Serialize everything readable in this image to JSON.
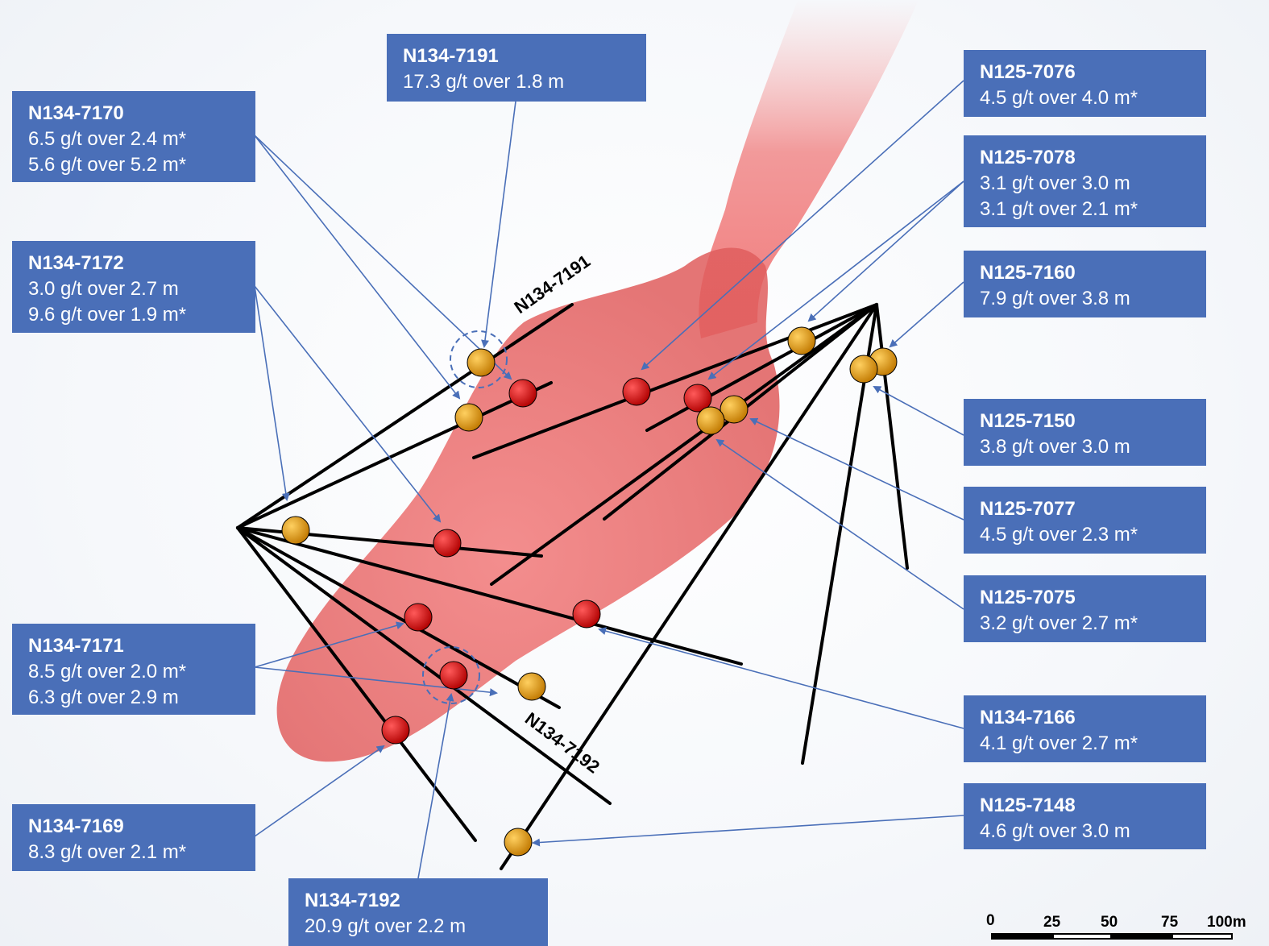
{
  "callouts": {
    "n134_7191": {
      "hole": "N134-7191",
      "lines": [
        "17.3 g/t over 1.8 m"
      ]
    },
    "n134_7170": {
      "hole": "N134-7170",
      "lines": [
        "6.5 g/t over 2.4 m*",
        "5.6 g/t over 5.2 m*"
      ]
    },
    "n134_7172": {
      "hole": "N134-7172",
      "lines": [
        "3.0 g/t over 2.7 m",
        "9.6 g/t over 1.9 m*"
      ]
    },
    "n134_7171": {
      "hole": "N134-7171",
      "lines": [
        "8.5 g/t over 2.0 m*",
        "6.3 g/t over 2.9 m"
      ]
    },
    "n134_7169": {
      "hole": "N134-7169",
      "lines": [
        "8.3 g/t over 2.1 m*"
      ]
    },
    "n134_7192": {
      "hole": "N134-7192",
      "lines": [
        "20.9 g/t over 2.2 m"
      ]
    },
    "n125_7076": {
      "hole": "N125-7076",
      "lines": [
        "4.5 g/t over 4.0 m*"
      ]
    },
    "n125_7078": {
      "hole": "N125-7078",
      "lines": [
        "3.1 g/t over 3.0 m",
        "3.1 g/t over 2.1 m*"
      ]
    },
    "n125_7160": {
      "hole": "N125-7160",
      "lines": [
        "7.9 g/t over 3.8 m"
      ]
    },
    "n125_7150": {
      "hole": "N125-7150",
      "lines": [
        "3.8 g/t over 3.0 m"
      ]
    },
    "n125_7077": {
      "hole": "N125-7077",
      "lines": [
        "4.5 g/t over 2.3 m*"
      ]
    },
    "n125_7075": {
      "hole": "N125-7075",
      "lines": [
        "3.2 g/t over 2.7 m*"
      ]
    },
    "n134_7166": {
      "hole": "N134-7166",
      "lines": [
        "4.1 g/t over 2.7 m*"
      ]
    },
    "n125_7148": {
      "hole": "N125-7148",
      "lines": [
        "4.6 g/t over 3.0 m"
      ]
    }
  },
  "trace_labels": {
    "n134_7191": "N134-7191",
    "n134_7192": "N134-7192"
  },
  "scale_bar": {
    "ticks": [
      "0",
      "25",
      "50",
      "75",
      "100m"
    ]
  },
  "colors": {
    "callout_fill": "#4a6fb8",
    "callout_text": "#ffffff",
    "leader_line": "#4a6fb8",
    "drill_trace": "#000000",
    "orebody": "#f07070",
    "intercept_red": "#e00000",
    "intercept_orange": "#f0a000"
  },
  "icons": {
    "intercept_red": "red-octagon-marker",
    "intercept_orange": "orange-octagon-marker"
  }
}
